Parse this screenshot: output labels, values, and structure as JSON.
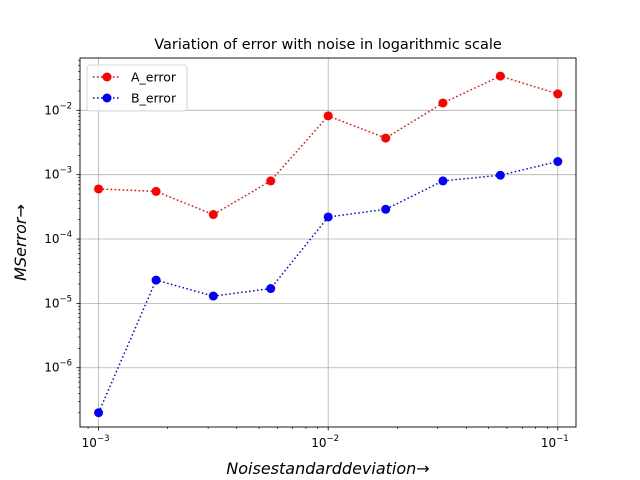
{
  "chart_data": {
    "type": "line",
    "title": "Variation of error with noise in logarithmic scale",
    "xlabel": "Noisestandarddeviation→",
    "ylabel": "MSerror→",
    "xscale": "log",
    "yscale": "log",
    "xlim": [
      0.00083,
      0.12
    ],
    "ylim": [
      1.2e-07,
      0.065
    ],
    "grid": true,
    "legend": "top-left",
    "x": [
      0.001,
      0.00178,
      0.00316,
      0.00562,
      0.01,
      0.0178,
      0.0316,
      0.0562,
      0.1
    ],
    "series": [
      {
        "name": "A_error",
        "color": "#ff0000",
        "linestyle": "dotted",
        "marker": "circle",
        "values": [
          0.0006,
          0.00055,
          0.00024,
          0.0008,
          0.0082,
          0.0037,
          0.013,
          0.034,
          0.018
        ]
      },
      {
        "name": "B_error",
        "color": "#0000ff",
        "linestyle": "dotted",
        "marker": "circle",
        "values": [
          2e-07,
          2.3e-05,
          1.3e-05,
          1.7e-05,
          0.00022,
          0.00029,
          0.0008,
          0.00098,
          0.0016
        ]
      }
    ],
    "x_ticks": [
      {
        "value": 0.001,
        "base": "10",
        "exp": "−3"
      },
      {
        "value": 0.01,
        "base": "10",
        "exp": "−2"
      },
      {
        "value": 0.1,
        "base": "10",
        "exp": "−1"
      }
    ],
    "y_ticks": [
      {
        "value": 1e-06,
        "base": "10",
        "exp": "−6"
      },
      {
        "value": 1e-05,
        "base": "10",
        "exp": "−5"
      },
      {
        "value": 0.0001,
        "base": "10",
        "exp": "−4"
      },
      {
        "value": 0.001,
        "base": "10",
        "exp": "−3"
      },
      {
        "value": 0.01,
        "base": "10",
        "exp": "−2"
      }
    ]
  }
}
